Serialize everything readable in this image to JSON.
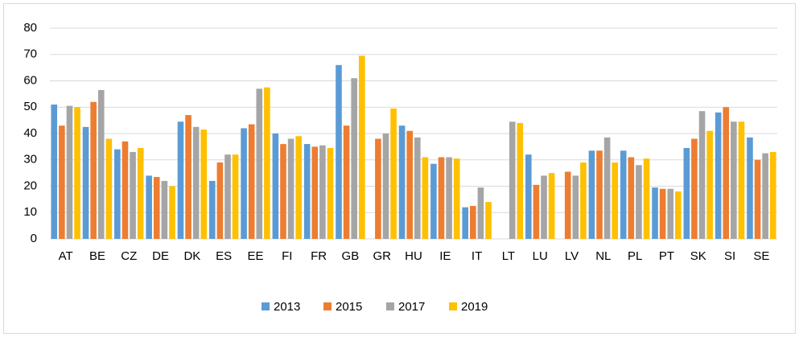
{
  "chart_data": {
    "type": "bar",
    "categories": [
      "AT",
      "BE",
      "CZ",
      "DE",
      "DK",
      "ES",
      "EE",
      "FI",
      "FR",
      "GB",
      "GR",
      "HU",
      "IE",
      "IT",
      "LT",
      "LU",
      "LV",
      "NL",
      "PL",
      "PT",
      "SK",
      "SI",
      "SE"
    ],
    "series": [
      {
        "name": "2013",
        "color": "#5b9bd5",
        "values": [
          51,
          42.5,
          34,
          24,
          44.5,
          22,
          42,
          40,
          36,
          66,
          null,
          43,
          28.5,
          12,
          null,
          32,
          null,
          33.5,
          33.5,
          19.5,
          34.5,
          48,
          38.5
        ]
      },
      {
        "name": "2015",
        "color": "#ed7d31",
        "values": [
          43,
          52,
          37,
          23.5,
          47,
          29,
          43.5,
          36,
          35,
          43,
          38,
          41,
          31,
          12.5,
          null,
          20.5,
          25.5,
          33.5,
          31,
          19,
          38,
          50,
          30
        ]
      },
      {
        "name": "2017",
        "color": "#a5a5a5",
        "values": [
          50.5,
          56.5,
          33,
          22,
          42.5,
          32,
          57,
          38,
          35.5,
          61,
          40,
          38.5,
          31,
          19.5,
          44.5,
          24,
          24,
          38.5,
          28,
          19,
          48.5,
          44.5,
          32.5
        ]
      },
      {
        "name": "2019",
        "color": "#ffc000",
        "values": [
          50,
          38,
          34.5,
          20,
          41.5,
          32,
          57.5,
          39,
          34.5,
          69.5,
          49.5,
          31,
          30.5,
          14,
          44,
          25,
          29,
          29,
          30.5,
          18,
          41,
          44.5,
          33
        ]
      }
    ],
    "ylim": [
      0,
      80
    ],
    "yticks": [
      0,
      10,
      20,
      30,
      40,
      50,
      60,
      70,
      80
    ],
    "grid": true,
    "legend": "bottom"
  }
}
